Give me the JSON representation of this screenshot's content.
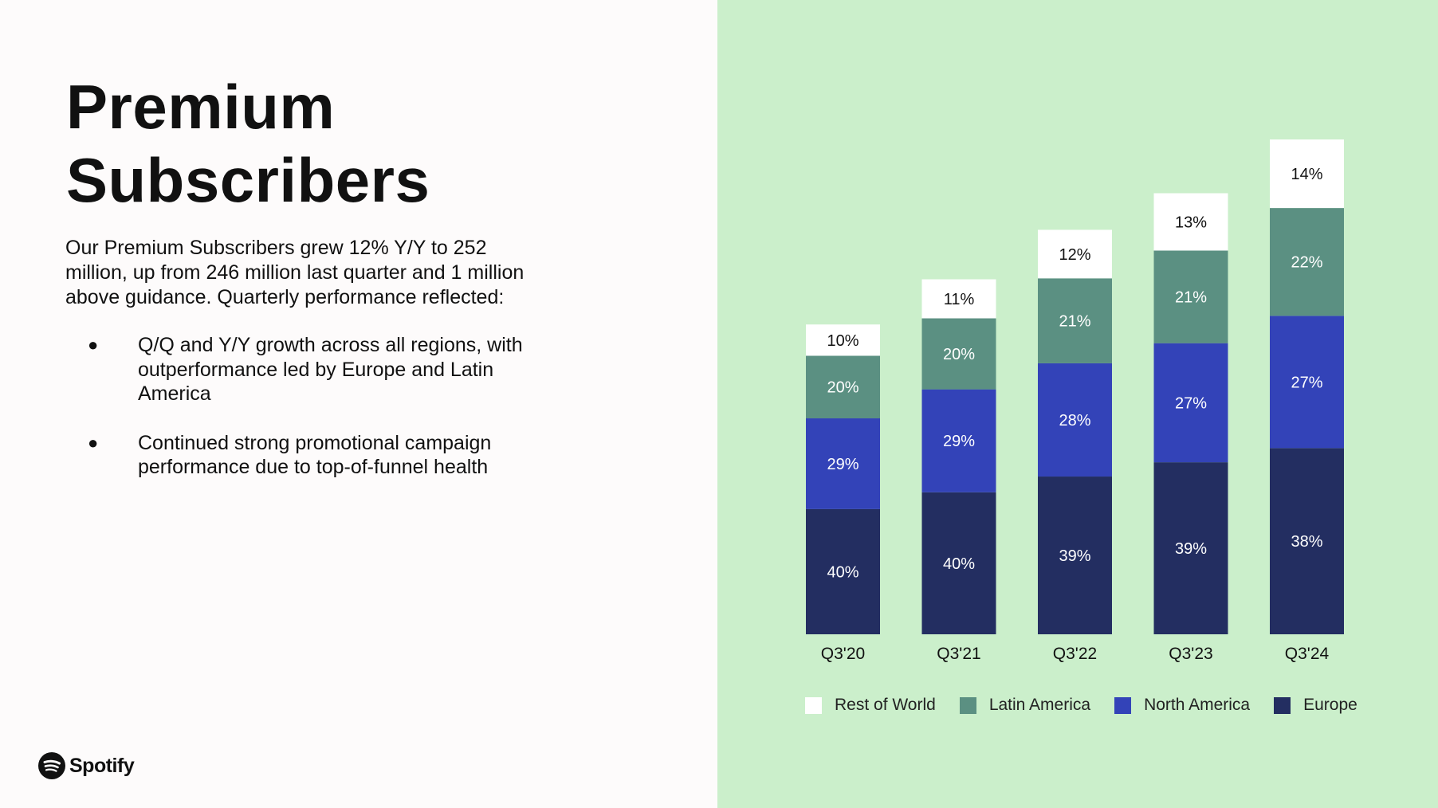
{
  "slide": {
    "title_line1": "Premium",
    "title_line2": "Subscribers",
    "intro": "Our Premium Subscribers grew 12% Y/Y to 252 million, up from 246 million last quarter and 1 million above guidance. Quarterly performance reflected:",
    "bullets": [
      "Q/Q and Y/Y growth across all regions, with outperformance led by Europe and Latin America",
      "Continued strong promotional campaign performance due to top-of-funnel health"
    ],
    "bullet_glyph": "●",
    "logo_text": "Spotify",
    "logo_icon": "spotify-logo-icon"
  },
  "colors": {
    "left_bg": "#fdfbfb",
    "right_bg": "#cbefcb",
    "europe": "#232e61",
    "north_america": "#3343b8",
    "latin_america": "#5b9082",
    "rest_of_world": "#ffffff"
  },
  "chart_data": {
    "type": "bar",
    "stacked": true,
    "categories": [
      "Q3'20",
      "Q3'21",
      "Q3'22",
      "Q3'23",
      "Q3'24"
    ],
    "totals_relative": [
      144,
      165,
      188,
      205,
      230
    ],
    "series": [
      {
        "name": "Europe",
        "color": "#232e61",
        "label_color": "#ffffff",
        "values": [
          40,
          40,
          39,
          39,
          38
        ]
      },
      {
        "name": "North America",
        "color": "#3343b8",
        "label_color": "#ffffff",
        "values": [
          29,
          29,
          28,
          27,
          27
        ]
      },
      {
        "name": "Latin America",
        "color": "#5b9082",
        "label_color": "#ffffff",
        "values": [
          20,
          20,
          21,
          21,
          22
        ]
      },
      {
        "name": "Rest of World",
        "color": "#ffffff",
        "label_color": "#111111",
        "values": [
          10,
          11,
          12,
          13,
          14
        ]
      }
    ],
    "value_suffix": "%",
    "legend_order": [
      "Rest of World",
      "Latin America",
      "North America",
      "Europe"
    ],
    "legend_position": "bottom",
    "grid": false,
    "title": "",
    "xlabel": "",
    "ylabel": ""
  }
}
